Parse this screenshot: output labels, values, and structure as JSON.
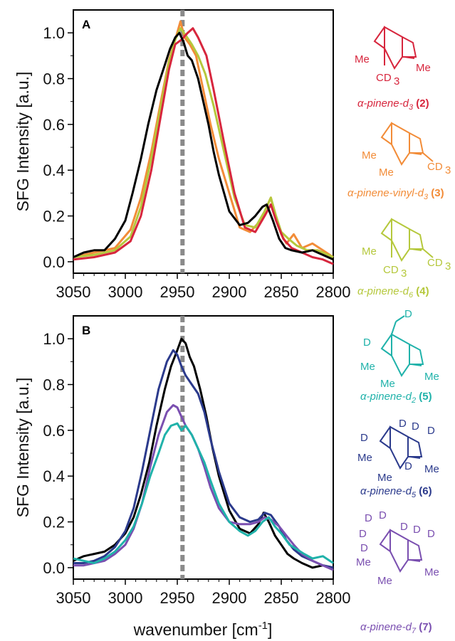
{
  "colors": {
    "black": "#000000",
    "red": "#d7263d",
    "orange": "#f28c38",
    "yellowgreen": "#b5c83c",
    "teal": "#20b2aa",
    "navy": "#2b3a8c",
    "purple": "#7a4fb0",
    "reference_line": "#8a8a8a"
  },
  "chart_data": [
    {
      "type": "line",
      "panel_label": "A",
      "xlabel": "",
      "ylabel": "SFG Intensity [a.u.]",
      "xlim": [
        3050,
        2800
      ],
      "ylim": [
        -0.05,
        1.1
      ],
      "x_ticks": [
        "3050",
        "3000",
        "2950",
        "2900",
        "2850",
        "2800"
      ],
      "y_ticks": [
        "0.0",
        "0.2",
        "0.4",
        "0.6",
        "0.8",
        "1.0"
      ],
      "reference_line_x": 2945,
      "grid": false,
      "series": [
        {
          "color": "orange",
          "x": [
            3050,
            3030,
            3010,
            2995,
            2985,
            2975,
            2965,
            2958,
            2952,
            2947,
            2943,
            2938,
            2932,
            2925,
            2918,
            2910,
            2900,
            2890,
            2880,
            2870,
            2865,
            2860,
            2855,
            2850,
            2845,
            2838,
            2830,
            2820,
            2810,
            2800
          ],
          "y": [
            0.02,
            0.04,
            0.06,
            0.14,
            0.28,
            0.48,
            0.72,
            0.88,
            0.97,
            1.05,
            0.98,
            0.95,
            0.9,
            0.75,
            0.6,
            0.45,
            0.3,
            0.15,
            0.13,
            0.18,
            0.23,
            0.28,
            0.18,
            0.12,
            0.08,
            0.12,
            0.06,
            0.08,
            0.05,
            0.02
          ]
        },
        {
          "color": "yellowgreen",
          "x": [
            3050,
            3030,
            3010,
            2995,
            2985,
            2975,
            2965,
            2958,
            2952,
            2947,
            2942,
            2936,
            2930,
            2923,
            2915,
            2905,
            2895,
            2885,
            2875,
            2866,
            2860,
            2855,
            2850,
            2843,
            2835,
            2825,
            2815,
            2805,
            2800
          ],
          "y": [
            0.02,
            0.03,
            0.05,
            0.11,
            0.24,
            0.45,
            0.7,
            0.87,
            0.97,
            1.02,
            0.99,
            0.95,
            0.9,
            0.82,
            0.68,
            0.48,
            0.28,
            0.16,
            0.15,
            0.22,
            0.28,
            0.2,
            0.13,
            0.1,
            0.07,
            0.05,
            0.05,
            0.03,
            0.02
          ]
        },
        {
          "color": "red",
          "x": [
            3050,
            3030,
            3010,
            2995,
            2985,
            2975,
            2965,
            2958,
            2952,
            2946,
            2940,
            2935,
            2930,
            2922,
            2915,
            2905,
            2895,
            2885,
            2875,
            2866,
            2860,
            2855,
            2848,
            2840,
            2830,
            2820,
            2810,
            2800
          ],
          "y": [
            0.01,
            0.02,
            0.04,
            0.09,
            0.2,
            0.4,
            0.66,
            0.84,
            0.95,
            0.97,
            1.0,
            1.02,
            0.98,
            0.9,
            0.75,
            0.52,
            0.3,
            0.15,
            0.13,
            0.2,
            0.25,
            0.18,
            0.1,
            0.06,
            0.04,
            0.02,
            0.01,
            -0.01
          ]
        },
        {
          "color": "black",
          "x": [
            3050,
            3040,
            3030,
            3020,
            3010,
            3000,
            2993,
            2985,
            2978,
            2970,
            2962,
            2957,
            2952,
            2948,
            2944,
            2940,
            2936,
            2930,
            2925,
            2920,
            2915,
            2910,
            2900,
            2890,
            2882,
            2875,
            2868,
            2864,
            2858,
            2852,
            2846,
            2840,
            2830,
            2820,
            2810,
            2800
          ],
          "y": [
            0.02,
            0.04,
            0.05,
            0.05,
            0.1,
            0.18,
            0.3,
            0.45,
            0.6,
            0.75,
            0.86,
            0.93,
            0.98,
            1.0,
            0.96,
            0.9,
            0.88,
            0.8,
            0.7,
            0.6,
            0.48,
            0.38,
            0.22,
            0.16,
            0.17,
            0.2,
            0.24,
            0.25,
            0.18,
            0.1,
            0.06,
            0.05,
            0.04,
            0.05,
            0.03,
            0.01
          ]
        }
      ]
    },
    {
      "type": "line",
      "panel_label": "B",
      "xlabel": "wavenumber [cm-1]",
      "ylabel": "SFG Intensity [a.u.]",
      "xlim": [
        3050,
        2800
      ],
      "ylim": [
        -0.05,
        1.1
      ],
      "x_ticks": [
        "3050",
        "3000",
        "2950",
        "2900",
        "2850",
        "2800"
      ],
      "y_ticks": [
        "0.0",
        "0.2",
        "0.4",
        "0.6",
        "0.8",
        "1.0"
      ],
      "reference_line_x": 2945,
      "grid": false,
      "series": [
        {
          "color": "black",
          "x": [
            3050,
            3040,
            3030,
            3020,
            3010,
            3000,
            2992,
            2985,
            2977,
            2970,
            2962,
            2956,
            2950,
            2946,
            2942,
            2938,
            2934,
            2928,
            2922,
            2916,
            2910,
            2900,
            2890,
            2880,
            2872,
            2867,
            2862,
            2856,
            2850,
            2844,
            2838,
            2830,
            2820,
            2810,
            2800
          ],
          "y": [
            0.03,
            0.05,
            0.06,
            0.07,
            0.1,
            0.15,
            0.22,
            0.32,
            0.46,
            0.62,
            0.78,
            0.88,
            0.95,
            1.0,
            0.98,
            0.92,
            0.88,
            0.78,
            0.66,
            0.52,
            0.4,
            0.25,
            0.17,
            0.15,
            0.19,
            0.24,
            0.2,
            0.14,
            0.1,
            0.06,
            0.04,
            0.02,
            0.0,
            0.01,
            0.0
          ]
        },
        {
          "color": "navy",
          "x": [
            3050,
            3040,
            3030,
            3020,
            3010,
            3000,
            2992,
            2984,
            2976,
            2968,
            2960,
            2954,
            2950,
            2946,
            2942,
            2936,
            2930,
            2924,
            2918,
            2910,
            2900,
            2890,
            2880,
            2872,
            2866,
            2860,
            2852,
            2845,
            2838,
            2830,
            2820,
            2810,
            2800
          ],
          "y": [
            0.02,
            0.02,
            0.03,
            0.05,
            0.09,
            0.16,
            0.26,
            0.42,
            0.6,
            0.78,
            0.9,
            0.95,
            0.93,
            0.88,
            0.84,
            0.8,
            0.76,
            0.68,
            0.56,
            0.42,
            0.28,
            0.22,
            0.2,
            0.21,
            0.24,
            0.23,
            0.18,
            0.12,
            0.08,
            0.05,
            0.03,
            0.01,
            0.0
          ]
        },
        {
          "color": "purple",
          "x": [
            3050,
            3040,
            3030,
            3020,
            3010,
            3000,
            2992,
            2984,
            2976,
            2968,
            2960,
            2954,
            2950,
            2946,
            2942,
            2936,
            2930,
            2924,
            2918,
            2910,
            2900,
            2890,
            2880,
            2872,
            2866,
            2860,
            2852,
            2845,
            2838,
            2830,
            2820,
            2810,
            2800
          ],
          "y": [
            0.01,
            0.01,
            0.02,
            0.03,
            0.06,
            0.1,
            0.17,
            0.28,
            0.44,
            0.58,
            0.68,
            0.71,
            0.7,
            0.66,
            0.62,
            0.58,
            0.52,
            0.44,
            0.35,
            0.26,
            0.2,
            0.19,
            0.19,
            0.2,
            0.22,
            0.21,
            0.18,
            0.14,
            0.1,
            0.06,
            0.03,
            0.01,
            -0.01
          ]
        },
        {
          "color": "teal",
          "x": [
            3050,
            3040,
            3030,
            3020,
            3010,
            3000,
            2992,
            2984,
            2976,
            2968,
            2962,
            2956,
            2950,
            2946,
            2942,
            2936,
            2930,
            2924,
            2918,
            2910,
            2900,
            2890,
            2882,
            2875,
            2868,
            2862,
            2856,
            2850,
            2842,
            2835,
            2828,
            2820,
            2810,
            2800
          ],
          "y": [
            0.04,
            0.03,
            0.02,
            0.04,
            0.07,
            0.12,
            0.18,
            0.28,
            0.4,
            0.5,
            0.58,
            0.62,
            0.63,
            0.6,
            0.62,
            0.58,
            0.52,
            0.46,
            0.38,
            0.28,
            0.2,
            0.16,
            0.14,
            0.16,
            0.2,
            0.22,
            0.18,
            0.15,
            0.1,
            0.08,
            0.06,
            0.04,
            0.05,
            0.02
          ]
        }
      ]
    }
  ],
  "text": {
    "ylabel_a": "SFG Intensity [a.u.]",
    "ylabel_b": "SFG Intensity [a.u.]",
    "xlabel_main": "wavenumber [cm",
    "xlabel_sup": "-1",
    "xlabel_end": "]"
  },
  "molecules": [
    {
      "color": "red",
      "name": "α-pinene-d",
      "sub": "3",
      "num": "(2)",
      "groups": {
        "me1": "Me",
        "cd3": "CD",
        "cd3_sub": "3",
        "me2": "Me"
      }
    },
    {
      "color": "orange",
      "name": "α-pinene-vinyl-d",
      "sub": "3",
      "num": "(3)",
      "groups": {
        "me1": "Me",
        "me2": "Me",
        "cd3": "CD",
        "cd3_sub": "3"
      }
    },
    {
      "color": "yellowgreen",
      "name": "α-pinene-d",
      "sub": "6",
      "num": "(4)",
      "groups": {
        "me1": "Me",
        "cd3a": "CD",
        "cd3a_sub": "3",
        "cd3b": "CD",
        "cd3b_sub": "3"
      }
    },
    {
      "color": "teal",
      "name": "α-pinene-d",
      "sub": "2",
      "num": "(5)",
      "groups": {
        "d": "D",
        "me1": "Me",
        "me2": "Me",
        "me3": "Me"
      }
    },
    {
      "color": "navy",
      "name": "α-pinene-d",
      "sub": "5",
      "num": "(6)",
      "groups": {
        "d": "D",
        "me1": "Me",
        "me2": "Me",
        "me3": "Me"
      }
    },
    {
      "color": "purple",
      "name": "α-pinene-d",
      "sub": "7",
      "num": "(7)",
      "groups": {
        "d": "D",
        "me1": "Me",
        "me2": "Me",
        "me3": "Me"
      }
    }
  ]
}
